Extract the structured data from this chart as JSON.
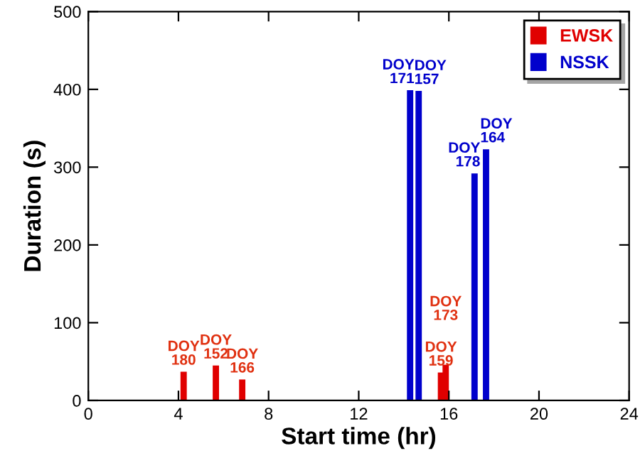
{
  "chart_data": {
    "type": "bar",
    "xlabel": "Start time (hr)",
    "ylabel": "Duration (s)",
    "xlim": [
      0,
      24
    ],
    "xticks": [
      0,
      4,
      8,
      12,
      16,
      20,
      24
    ],
    "ylim": [
      0,
      500
    ],
    "yticks": [
      0,
      100,
      200,
      300,
      400,
      500
    ],
    "grid": false,
    "legend": "top right",
    "series": [
      {
        "name": "EWSK",
        "color": "#e00000",
        "x": [
          4.23,
          5.66,
          6.83,
          15.65,
          15.86
        ],
        "values": [
          37,
          45,
          27,
          36,
          46
        ],
        "value_labels": [
          "DOY\n180",
          "DOY\n152",
          "DOY\n166",
          "DOY\n159",
          "DOY\n173"
        ]
      },
      {
        "name": "NSSK",
        "color": "#0000cc",
        "x": [
          14.28,
          14.66,
          17.14,
          17.65
        ],
        "values": [
          399,
          398,
          292,
          323
        ],
        "value_labels": [
          "DOY\n171",
          "DOY\n157",
          "DOY\n178",
          "DOY\n164"
        ]
      }
    ]
  }
}
